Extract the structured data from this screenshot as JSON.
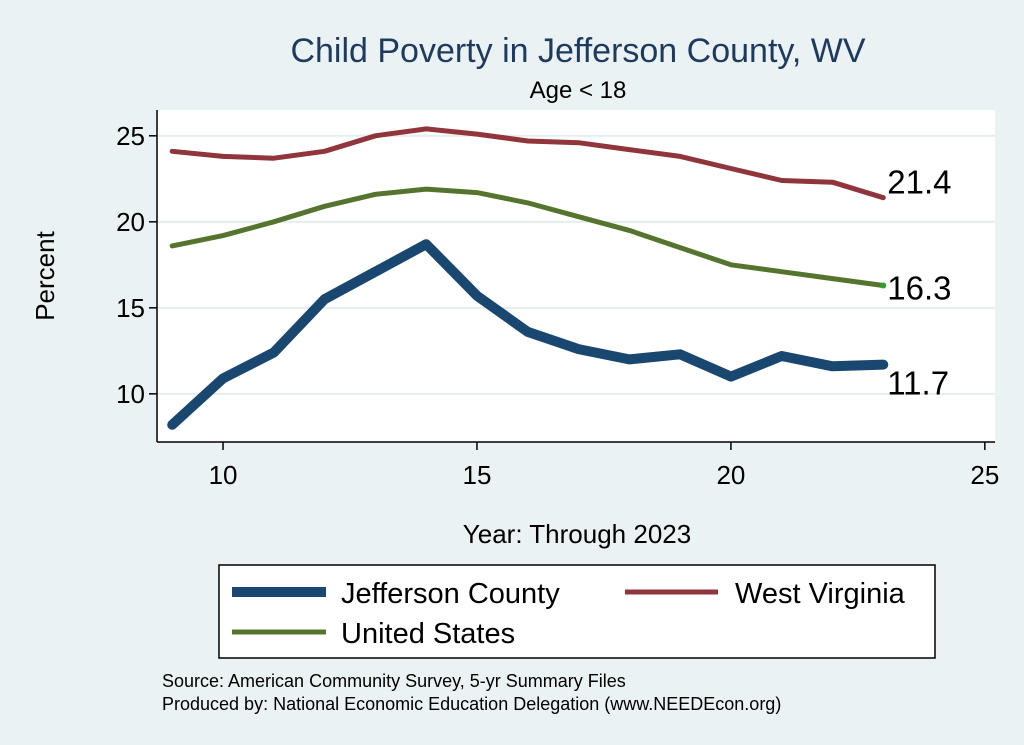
{
  "chart_data": {
    "type": "line",
    "title": "Child Poverty in Jefferson County, WV",
    "subtitle": "Age < 18",
    "xlabel": "Year: Through 2023",
    "ylabel": "Percent",
    "xlim": [
      8.7,
      25.2
    ],
    "ylim": [
      7.2,
      26.5
    ],
    "xticks": [
      10,
      15,
      20,
      25
    ],
    "yticks": [
      10,
      15,
      20,
      25
    ],
    "x": [
      9,
      10,
      11,
      12,
      13,
      14,
      15,
      16,
      17,
      18,
      19,
      20,
      21,
      22,
      23
    ],
    "series": [
      {
        "name": "Jefferson County",
        "color": "#1a476f",
        "width": 10,
        "values": [
          8.2,
          10.9,
          12.4,
          15.5,
          17.1,
          18.7,
          15.7,
          13.6,
          12.6,
          12.0,
          12.3,
          11.0,
          12.2,
          11.6,
          11.7
        ],
        "end_label": "11.7"
      },
      {
        "name": "West Virginia",
        "color": "#90353b",
        "width": 5,
        "values": [
          24.1,
          23.8,
          23.7,
          24.1,
          25.0,
          25.4,
          25.1,
          24.7,
          24.6,
          24.2,
          23.8,
          23.1,
          22.4,
          22.3,
          21.4
        ],
        "end_label": "21.4"
      },
      {
        "name": "United States",
        "color": "#55752f",
        "width": 5,
        "values": [
          18.6,
          19.2,
          20.0,
          20.9,
          21.6,
          21.9,
          21.7,
          21.1,
          20.3,
          19.5,
          18.5,
          17.5,
          17.1,
          16.7,
          16.3
        ],
        "end_label": "16.3"
      }
    ],
    "legend": {
      "position": "bottom",
      "items": [
        "Jefferson County",
        "West Virginia",
        "United States"
      ]
    },
    "grid": true
  },
  "notes": {
    "source": "Source: American Community Survey, 5-yr Summary Files",
    "produced_by": "Produced by: National Economic Education Delegation (www.NEEDEcon.org)"
  }
}
